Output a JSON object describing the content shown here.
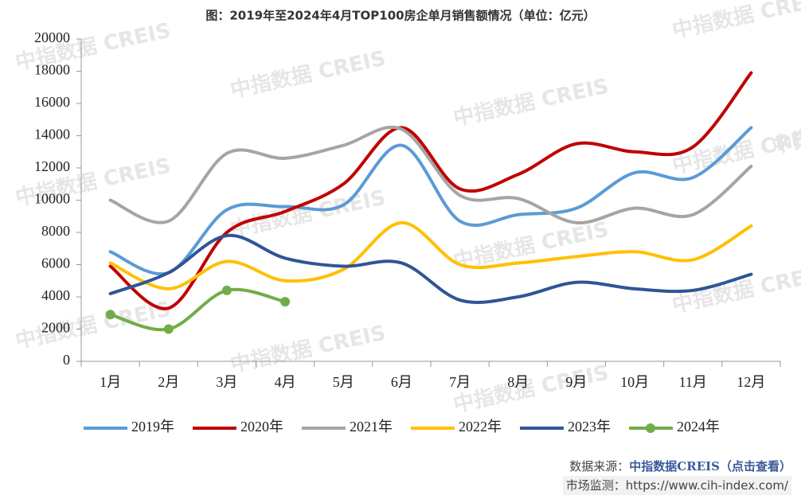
{
  "chart_data": {
    "type": "line",
    "title": "图：2019年至2024年4月TOP100房企单月销售额情况（单位：亿元）",
    "watermark": "中指数据 CREIS",
    "categories": [
      "1月",
      "2月",
      "3月",
      "4月",
      "5月",
      "6月",
      "7月",
      "8月",
      "9月",
      "10月",
      "11月",
      "12月"
    ],
    "series": [
      {
        "name": "2019年",
        "color": "#5b9bd5",
        "values": [
          6800,
          5500,
          9400,
          9600,
          9700,
          13400,
          8700,
          9100,
          9500,
          11700,
          11400,
          14500
        ]
      },
      {
        "name": "2020年",
        "color": "#c00000",
        "values": [
          5900,
          3300,
          8000,
          9300,
          11000,
          14500,
          10700,
          11600,
          13500,
          13000,
          13300,
          17900
        ]
      },
      {
        "name": "2021年",
        "color": "#a5a5a5",
        "values": [
          10000,
          8700,
          12900,
          12600,
          13400,
          14400,
          10300,
          10100,
          8600,
          9500,
          9100,
          12100
        ]
      },
      {
        "name": "2022年",
        "color": "#ffc000",
        "values": [
          6100,
          4500,
          6200,
          5000,
          5700,
          8600,
          6000,
          6100,
          6500,
          6800,
          6300,
          8400
        ]
      },
      {
        "name": "2023年",
        "color": "#2f5597",
        "values": [
          4200,
          5500,
          7800,
          6400,
          5900,
          6100,
          3800,
          4000,
          4900,
          4500,
          4400,
          5400
        ]
      },
      {
        "name": "2024年",
        "color": "#70ad47",
        "markers": true,
        "values": [
          2900,
          2000,
          4400,
          3700,
          null,
          null,
          null,
          null,
          null,
          null,
          null,
          null
        ]
      }
    ],
    "ylim": [
      0,
      20000
    ],
    "yticks": [
      0,
      2000,
      4000,
      6000,
      8000,
      10000,
      12000,
      14000,
      16000,
      18000,
      20000
    ],
    "grid": false,
    "legend": "bottom"
  },
  "footer": {
    "source_label": "数据来源：",
    "source_link": "中指数据CREIS（点击查看）",
    "monitor": "市场监测：https://www.cih-index.com/"
  }
}
